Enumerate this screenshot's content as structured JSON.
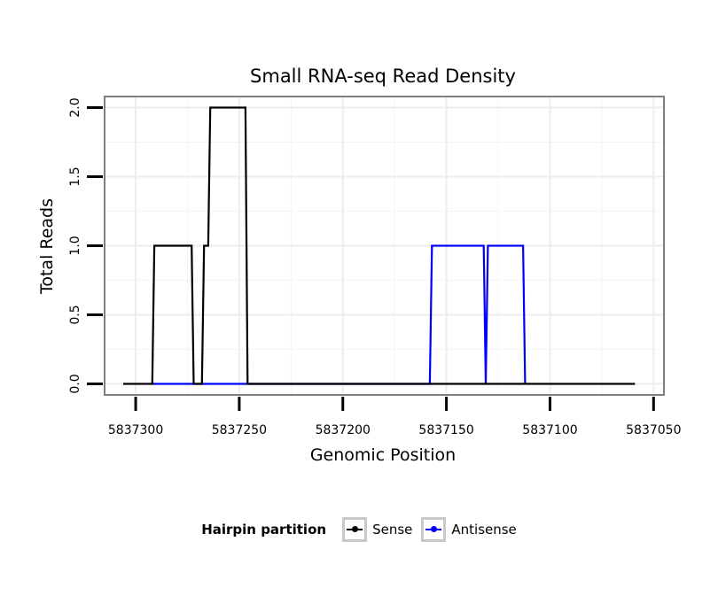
{
  "chart_data": {
    "type": "line",
    "title": "Small RNA-seq Read Density",
    "xlabel": "Genomic Position",
    "ylabel": "Total Reads",
    "xlim": [
      5837315,
      5837045
    ],
    "ylim": [
      -0.08,
      2.08
    ],
    "x_reversed": true,
    "xticks": [
      5837300,
      5837250,
      5837200,
      5837150,
      5837100,
      5837050
    ],
    "xtick_labels": [
      "5837300",
      "5837250",
      "5837200",
      "5837150",
      "5837100",
      "5837050"
    ],
    "yticks": [
      0,
      0.5,
      1,
      1.5,
      2
    ],
    "ytick_labels": [
      "0.0",
      "0.5",
      "1.0",
      "1.5",
      "2.0"
    ],
    "grid": true,
    "legend_position": "bottom",
    "series": [
      {
        "name": "Sense",
        "color": "#000000",
        "points": [
          [
            5837306,
            0
          ],
          [
            5837292,
            0
          ],
          [
            5837291,
            1
          ],
          [
            5837273,
            1
          ],
          [
            5837272,
            0
          ],
          [
            5837268,
            0
          ],
          [
            5837267,
            1
          ],
          [
            5837265,
            1
          ],
          [
            5837264,
            2
          ],
          [
            5837247,
            2
          ],
          [
            5837246,
            0
          ],
          [
            5837059,
            0
          ]
        ]
      },
      {
        "name": "Antisense",
        "color": "#0000ff",
        "points": [
          [
            5837292,
            0
          ],
          [
            5837246,
            0
          ],
          [
            5837158,
            0
          ],
          [
            5837157,
            1
          ],
          [
            5837132,
            1
          ],
          [
            5837131,
            0
          ],
          [
            5837130,
            1
          ],
          [
            5837113,
            1
          ],
          [
            5837112,
            0
          ]
        ]
      }
    ]
  },
  "legend": {
    "title": "Hairpin partition",
    "items": [
      {
        "label": "Sense",
        "color": "#000000"
      },
      {
        "label": "Antisense",
        "color": "#0000ff"
      }
    ]
  }
}
